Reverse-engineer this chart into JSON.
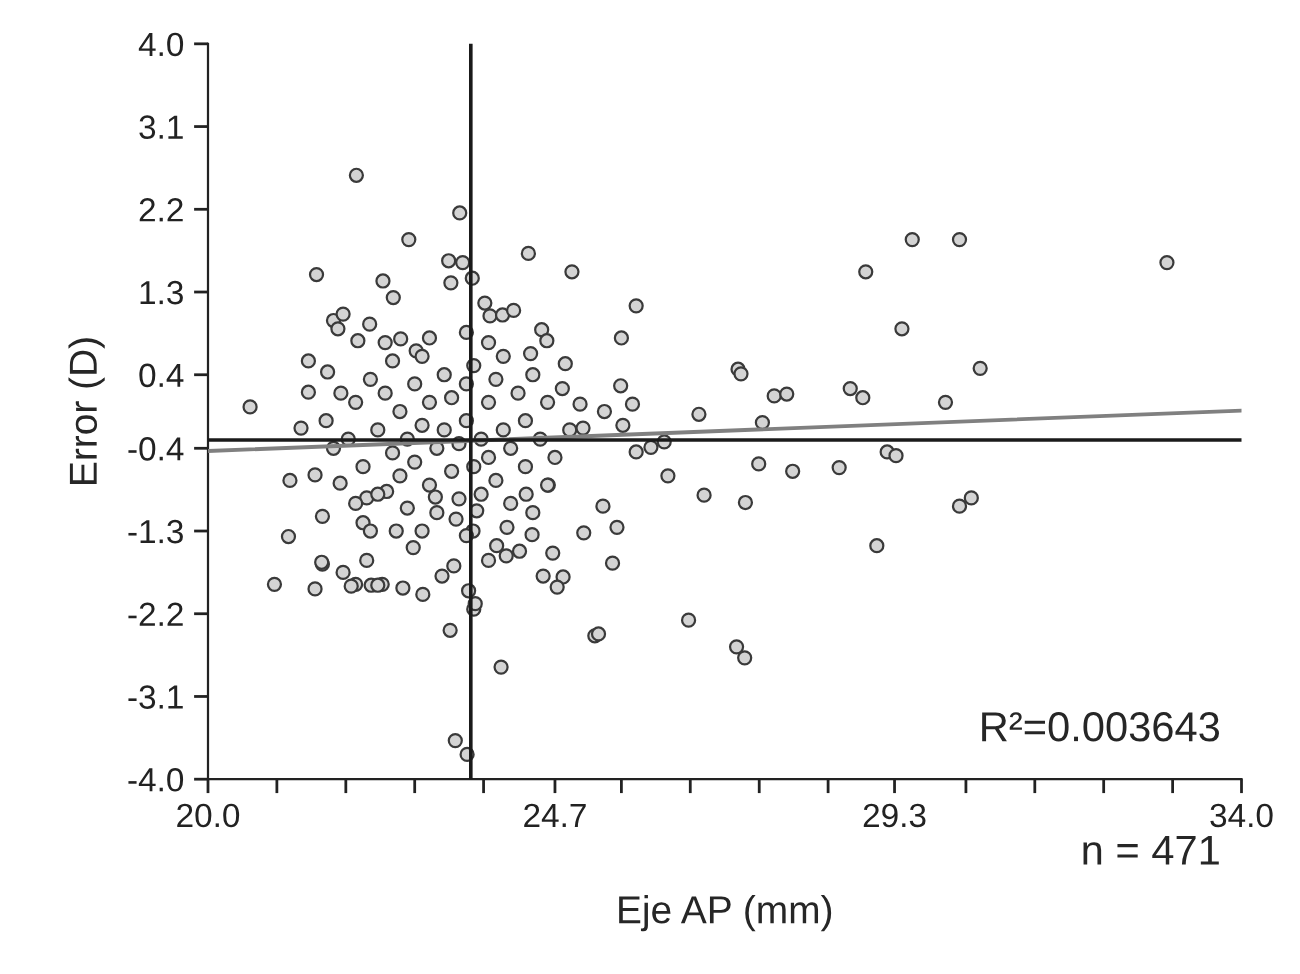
{
  "chart_data": {
    "type": "scatter",
    "xlabel": "Eje AP (mm)",
    "ylabel": "Error (D)",
    "annotations": [
      "R²=0.003643",
      "n = 471"
    ],
    "xlim": [
      20.0,
      34.0
    ],
    "ylim": [
      -4.0,
      4.0
    ],
    "xticks": [
      {
        "value": 20,
        "label": "20.0"
      },
      {
        "value": 20.933,
        "label": null
      },
      {
        "value": 21.867,
        "label": null
      },
      {
        "value": 22.8,
        "label": null
      },
      {
        "value": 23.733,
        "label": null
      },
      24.7,
      {
        "value": 25.6,
        "label": null
      },
      {
        "value": 26.533,
        "label": null
      },
      {
        "value": 27.467,
        "label": null
      },
      {
        "value": 28.4,
        "label": null
      },
      29.3,
      {
        "value": 30.267,
        "label": null
      },
      {
        "value": 31.2,
        "label": null
      },
      {
        "value": 32.133,
        "label": null
      },
      {
        "value": 33.067,
        "label": null
      },
      {
        "value": 34,
        "label": "34.0"
      }
    ],
    "yticks": [
      {
        "value": -4,
        "label": "-4.0"
      },
      -3.1,
      -2.2,
      -1.3,
      -0.4,
      0.4,
      1.3,
      2.2,
      3.1,
      {
        "value": 4,
        "label": "4.0"
      }
    ],
    "grid": false,
    "ref_lines": [
      {
        "axis": "x",
        "value": 23.56,
        "color": "#1a1a1a"
      },
      {
        "axis": "y",
        "value": -0.31,
        "color": "#1a1a1a"
      }
    ],
    "series": [
      {
        "color": "#d4d4d4",
        "marker": "circle",
        "x": [
          20.57,
          21.11,
          21.09,
          20.9,
          21.26,
          21.36,
          21.36,
          21.47,
          21.45,
          21.55,
          21.55,
          21.45,
          21.83,
          22.01,
          22.0,
          22.21,
          22.36,
          22.64,
          22.91,
          22.72,
          23.28,
          23.35,
          23.51,
          23.41,
          23.26,
          23.45,
          23.6,
          23.53,
          22.37,
          22.51,
          21.7,
          21.83,
          21.76,
          22.19,
          22.03,
          21.62,
          22.61,
          22.82,
          23.5,
          21.54,
          21.94,
          22.3,
          23.62,
          23.97,
          25.24,
          25.09,
          24.67,
          24.54,
          24.81,
          24.73,
          24.39,
          24.22,
          24.05,
          23.8,
          23.33,
          23.17,
          22.15,
          22.1,
          22.55,
          22.78,
          23.36,
          23.59,
          23.64,
          23.91,
          24.04,
          22.15,
          21.79,
          24.61,
          24.31,
          23.08,
          22.42,
          23.29,
          23.58,
          24.34,
          24.93,
          23.75,
          23.82,
          23.99,
          24.14,
          24.52,
          24.59,
          24.84,
          24.37,
          25.04,
          25.08,
          25.8,
          25.6,
          25.59,
          25.75,
          25.37,
          25.62,
          25.8,
          26.0,
          26.18,
          26.23,
          26.65,
          26.72,
          27.18,
          27.22,
          27.28,
          27.46,
          27.51,
          27.67,
          27.84,
          27.92,
          28.55,
          28.7,
          28.87,
          28.91,
          29.4,
          29.54,
          29.2,
          29.32,
          29.06,
          25.35,
          25.54,
          25.48,
          25.29,
          26.51,
          27.16,
          27.27,
          30.18,
          30.46,
          29.99,
          32.99,
          30.18,
          30.34,
          21.9,
          22.0,
          22.1,
          22.2,
          22.3,
          22.3,
          22.4,
          22.5,
          22.5,
          22.6,
          22.6,
          22.7,
          22.7,
          22.8,
          22.8,
          22.9,
          22.9,
          23.0,
          23.0,
          23.1,
          23.1,
          23.2,
          23.2,
          23.3,
          23.3,
          23.4,
          23.4,
          23.5,
          23.5,
          23.6,
          23.6,
          23.7,
          23.7,
          23.8,
          23.8,
          23.9,
          23.9,
          24.0,
          24.0,
          24.1,
          24.1,
          24.2,
          24.3,
          24.3,
          24.4,
          24.5,
          24.6,
          24.6,
          24.7,
          24.8,
          24.9,
          21.7,
          21.8,
          21.6,
          22.0,
          22.2,
          22.9,
          23.5,
          24.4,
          23.0,
          23.8,
          22.4
        ],
        "values": [
          0.05,
          -0.75,
          -1.36,
          -1.88,
          -0.18,
          0.21,
          0.55,
          1.49,
          -1.93,
          -1.14,
          -1.66,
          -0.69,
          -1.75,
          2.57,
          -1.88,
          -1.89,
          -1.88,
          -1.92,
          -1.99,
          1.87,
          -2.38,
          -3.58,
          -3.73,
          2.16,
          1.64,
          1.62,
          -2.15,
          -1.95,
          1.42,
          1.24,
          0.99,
          1.06,
          0.9,
          0.95,
          0.77,
          0.43,
          0.79,
          0.66,
          0.86,
          -1.64,
          -1.9,
          -1.89,
          -2.09,
          -2.78,
          -2.44,
          -1.32,
          -1.54,
          -1.79,
          -1.8,
          -1.91,
          -1.34,
          -1.52,
          -1.26,
          -1.62,
          -1.68,
          -1.79,
          -1.62,
          -1.21,
          -1.3,
          -1.48,
          -1.17,
          -1.3,
          -1.08,
          -1.46,
          -1.57,
          -0.94,
          -0.78,
          -0.8,
          -0.9,
          -0.93,
          -0.87,
          1.4,
          1.45,
          1.72,
          1.52,
          1.18,
          1.04,
          1.05,
          1.1,
          0.89,
          0.77,
          0.52,
          0.63,
          0.08,
          -0.18,
          1.15,
          0.8,
          0.28,
          0.08,
          0.0,
          -0.15,
          -0.44,
          -0.39,
          -0.33,
          -0.7,
          -0.03,
          -0.91,
          0.46,
          0.41,
          -0.99,
          -0.57,
          -0.12,
          0.17,
          0.19,
          -0.65,
          -0.61,
          0.25,
          0.15,
          1.52,
          0.9,
          1.87,
          -0.44,
          -0.48,
          -1.46,
          -1.03,
          -1.26,
          -1.65,
          -2.42,
          -2.27,
          -2.56,
          -2.68,
          1.87,
          0.47,
          0.1,
          1.62,
          -1.03,
          -0.94,
          -0.3,
          0.1,
          -0.6,
          0.35,
          -0.2,
          -0.9,
          0.2,
          -0.45,
          0.55,
          -0.7,
          0.0,
          -0.3,
          -1.05,
          0.3,
          -0.55,
          -0.15,
          0.6,
          -0.8,
          0.1,
          -0.4,
          -1.1,
          0.4,
          -0.2,
          -0.65,
          0.15,
          -0.95,
          -0.35,
          0.3,
          -0.1,
          -0.6,
          0.5,
          -0.3,
          -0.9,
          0.1,
          -0.5,
          0.35,
          -0.75,
          -0.2,
          0.6,
          -1.0,
          -0.4,
          0.2,
          -0.6,
          -0.1,
          0.4,
          -0.3,
          -0.8,
          0.1,
          -0.5,
          0.25,
          -0.2,
          -0.4,
          0.2,
          -0.1,
          -1.0,
          -1.3,
          -1.3,
          -1.35,
          -1.1,
          0.8,
          0.75,
          0.75
        ]
      },
      {
        "type": "line",
        "color": "#808080",
        "x": [
          20.0,
          34.0
        ],
        "values": [
          -0.43,
          0.01
        ]
      }
    ]
  }
}
